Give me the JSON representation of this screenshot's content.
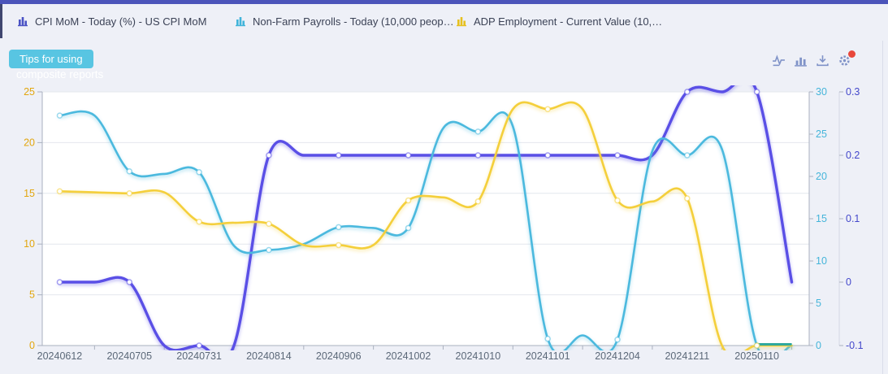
{
  "header": {
    "tabs": [
      {
        "label": "CPI MoM - Today (%) - US CPI MoM",
        "icon_color": "#4a52c4"
      },
      {
        "label": "Non-Farm Payrolls - Today (10,000 people) - ...",
        "icon_color": "#41b4da"
      },
      {
        "label": "ADP Employment - Current Value (10,000 pe...",
        "icon_color": "#e6c020"
      }
    ]
  },
  "tips": {
    "button_label": "Tips for using",
    "subtitle": "composite reports",
    "button_color": "#58c5e2"
  },
  "toolbar": {
    "icons": [
      {
        "name": "line-chart"
      },
      {
        "name": "bar-chart"
      },
      {
        "name": "download"
      },
      {
        "name": "settings"
      }
    ],
    "color": "#8093c8",
    "badge_color": "#e8473b"
  },
  "chart_data": {
    "type": "line",
    "title": "",
    "x_labels": [
      "20240612",
      "20240705",
      "20240731",
      "20240814",
      "20240906",
      "20241002",
      "20241010",
      "20241101",
      "20241204",
      "20241211",
      "20250110"
    ],
    "points_per_label": 2,
    "axes": {
      "left": {
        "min": 0,
        "max": 25,
        "tick_labels": [
          "0",
          "5",
          "10",
          "15",
          "20",
          "25"
        ],
        "color": "#e2a60e"
      },
      "right_payrolls": {
        "min": 0,
        "max": 30,
        "tick_labels": [
          "0",
          "5",
          "10",
          "15",
          "20",
          "25",
          "30"
        ],
        "color": "#45b5da"
      },
      "right_cpi": {
        "min": -0.1,
        "max": 0.3,
        "tick_labels": [
          "-0.1",
          "0",
          "0.1",
          "0.2",
          "0.3"
        ],
        "color": "#4448cb"
      }
    },
    "series": [
      {
        "name": "CPI MoM - Today (%) - US CPI MoM",
        "color": "#5a50e6",
        "axis": "right_cpi",
        "values_at_labels": [
          0,
          0,
          -0.1,
          0.2,
          0.2,
          0.2,
          0.2,
          0.2,
          0.2,
          0.3,
          0.3
        ],
        "dense_values": [
          0,
          0,
          0,
          -0.1,
          -0.1,
          -0.1,
          0.2,
          0.2,
          0.2,
          0.2,
          0.2,
          0.2,
          0.2,
          0.2,
          0.2,
          0.2,
          0.2,
          0.2,
          0.3,
          0.3,
          0.3,
          0
        ]
      },
      {
        "name": "Non-Farm Payrolls - Today (10,000 people)",
        "color": "#4bb9de",
        "axis": "right_payrolls",
        "values_at_labels": [
          27.2,
          20.6,
          20.5,
          11.3,
          14.0,
          13.9,
          25.3,
          0.8,
          0.7,
          22.5,
          0
        ],
        "dense_values": [
          27.2,
          27.2,
          20.6,
          20.3,
          20.5,
          11.8,
          11.3,
          12.0,
          14.0,
          13.9,
          13.9,
          25.7,
          25.3,
          25.9,
          0.8,
          1.2,
          0.7,
          23.0,
          22.5,
          23.2,
          0,
          0
        ]
      },
      {
        "name": "ADP Employment - Current Value (10,000 people)",
        "color": "#f4cf3b",
        "axis": "left",
        "values_at_labels": [
          15.2,
          15.0,
          12.2,
          12.0,
          9.9,
          14.3,
          14.2,
          23.3,
          14.3,
          14.5,
          0
        ],
        "dense_values": [
          15.2,
          15.1,
          15.0,
          15.1,
          12.2,
          12.1,
          12.0,
          9.9,
          9.9,
          9.9,
          14.3,
          14.6,
          14.2,
          23.3,
          23.3,
          23.3,
          14.3,
          14.2,
          14.5,
          0,
          0,
          0
        ]
      }
    ],
    "grid": {
      "line_color": "#e4e7ee",
      "axis_line_color": "#aab1bf",
      "secondary_axis_line_color": "#d4d7e4",
      "x_label_color": "#5b6878",
      "plot_background": "#ffffff"
    },
    "legend_position": "top-tabs",
    "end_overlap_artifact": {
      "color": "#2fa89e"
    }
  }
}
